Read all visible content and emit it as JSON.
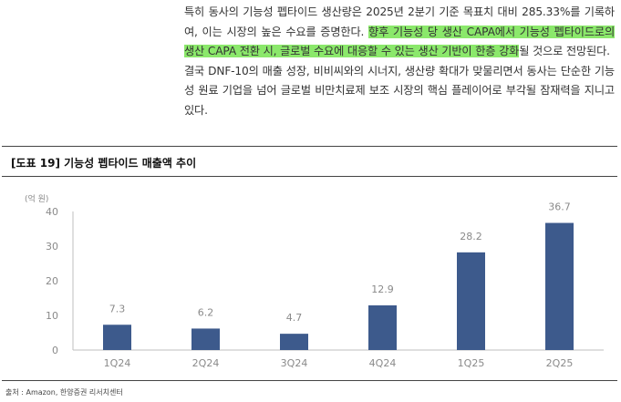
{
  "paragraph": {
    "text_before": "특히 동사의 기능성 펩타이드 생산량은 2025년 2분기 기준 목표치 대비 285.33%를 기록하여, 이는 시장의 높은 수요를 증명한다. ",
    "highlight": "향후 기능성 당 생산 CAPA에서 기능성 펩타이드로의 생산 CAPA 전환 시, 글로벌 수요에 대응할 수 있는 생산 기반이 한층 강화",
    "text_after": "될 것으로 전망된다.",
    "second": "결국 DNF-10의 매출 성장, 비비씨와의 시너지, 생산량 확대가 맞물리면서 동사는 단순한 기능성 원료 기업을 넘어 글로벌 비만치료제 보조 시장의 핵심 플레이어로 부각될 잠재력을 지니고 있다."
  },
  "figure": {
    "title": "[도표 19] 기능성 펩타이드 매출액 추이",
    "source": "출처 : Amazon, 한양증권 리서치센터"
  },
  "chart_data": {
    "type": "bar",
    "unit_label": "(억 원)",
    "categories": [
      "1Q24",
      "2Q24",
      "3Q24",
      "4Q24",
      "1Q25",
      "2Q25"
    ],
    "values": [
      7.3,
      6.2,
      4.7,
      12.9,
      28.2,
      36.7
    ],
    "value_labels": [
      "7.3",
      "6.2",
      "4.7",
      "12.9",
      "28.2",
      "36.7"
    ],
    "y_ticks": [
      "0",
      "10",
      "20",
      "30",
      "40"
    ],
    "ylim": [
      0,
      40
    ],
    "grid": false,
    "colors": {
      "bar": "#3d5a8c",
      "axis": "#bfbfbf",
      "label": "#8a8a8a"
    }
  }
}
